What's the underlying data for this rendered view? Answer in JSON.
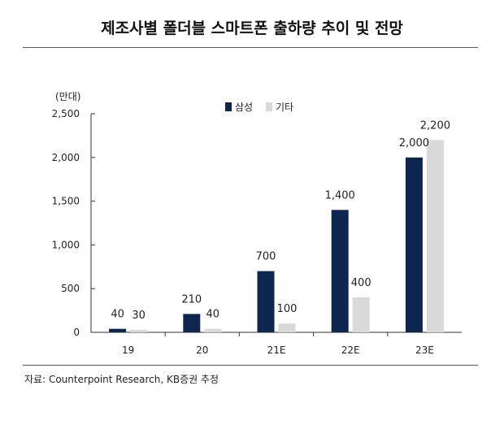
{
  "title": "제조사별 폴더블 스마트폰 출하량 추이 및 전망",
  "source": "자료: Counterpoint Research, KB증권 추정",
  "chart_data": {
    "type": "bar",
    "title": "제조사별 폴더블 스마트폰 출하량 추이 및 전망",
    "unit_label": "(만대)",
    "categories": [
      "19",
      "20",
      "21E",
      "22E",
      "23E"
    ],
    "series": [
      {
        "name": "삼성",
        "color": "#0d2650",
        "values": [
          40,
          210,
          700,
          1400,
          2000
        ]
      },
      {
        "name": "기타",
        "color": "#d9d9d9",
        "values": [
          30,
          40,
          100,
          400,
          2200
        ]
      }
    ],
    "y_ticks": [
      0,
      500,
      1000,
      1500,
      2000,
      2500
    ],
    "y_tick_labels": [
      "0",
      "500",
      "1,000",
      "1,500",
      "2,000",
      "2,500"
    ],
    "ylim": [
      0,
      2500
    ],
    "value_labels": [
      [
        "40",
        "210",
        "700",
        "1,400",
        "2,000"
      ],
      [
        "30",
        "40",
        "100",
        "400",
        "2,200"
      ]
    ],
    "legend_position": "top-center",
    "grid": false
  }
}
